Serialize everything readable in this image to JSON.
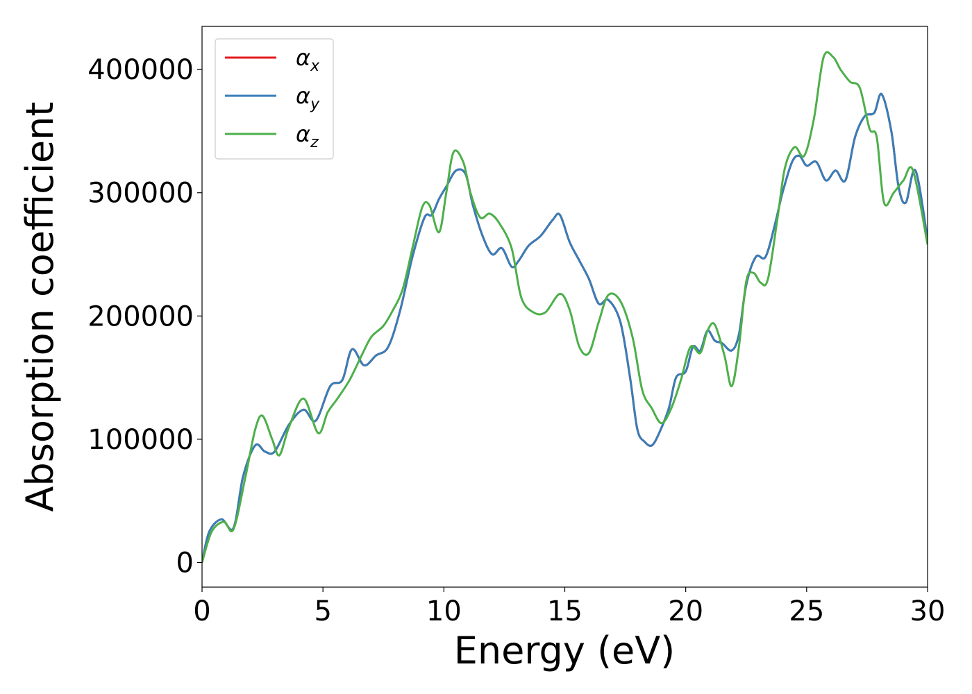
{
  "chart_data": {
    "type": "line",
    "xlabel": "Energy (eV)",
    "ylabel": "Absorption coefficient",
    "xlim": [
      0,
      30
    ],
    "ylim": [
      -20000,
      435000
    ],
    "xticks": [
      0,
      5,
      10,
      15,
      20,
      25,
      30
    ],
    "yticks": [
      0,
      100000,
      200000,
      300000,
      400000
    ],
    "grid": false,
    "legend_position": "top-left",
    "series": [
      {
        "name": "αx",
        "symbol": "α",
        "subscript": "x",
        "color": "#e41a1c",
        "x": [
          0,
          0.3,
          0.8,
          1.3,
          1.7,
          2.2,
          2.6,
          3.0,
          3.6,
          4.2,
          4.7,
          5.3,
          5.8,
          6.2,
          6.7,
          7.2,
          7.7,
          8.2,
          8.7,
          9.2,
          9.5,
          9.8,
          10.1,
          10.5,
          10.9,
          11.2,
          11.6,
          12.0,
          12.4,
          12.8,
          13.1,
          13.5,
          14.0,
          14.5,
          14.8,
          15.2,
          15.6,
          16.0,
          16.4,
          16.8,
          17.3,
          17.7,
          18.0,
          18.3,
          18.6,
          18.9,
          19.3,
          19.6,
          20.0,
          20.3,
          20.6,
          20.9,
          21.2,
          21.5,
          21.9,
          22.2,
          22.5,
          22.9,
          23.3,
          23.7,
          24.0,
          24.4,
          24.7,
          25.0,
          25.4,
          25.8,
          26.2,
          26.6,
          27.0,
          27.4,
          27.8,
          28.1,
          28.5,
          28.8,
          29.1,
          29.5,
          30.0
        ],
        "values": [
          0,
          25000,
          35000,
          28000,
          70000,
          95000,
          90000,
          90000,
          112000,
          124000,
          115000,
          143000,
          148000,
          173000,
          160000,
          168000,
          175000,
          205000,
          248000,
          280000,
          282000,
          295000,
          305000,
          318000,
          315000,
          290000,
          265000,
          250000,
          255000,
          240000,
          245000,
          257000,
          265000,
          278000,
          282000,
          260000,
          245000,
          230000,
          210000,
          213000,
          195000,
          150000,
          108000,
          98000,
          95000,
          105000,
          125000,
          150000,
          155000,
          175000,
          172000,
          188000,
          180000,
          178000,
          172000,
          185000,
          225000,
          248000,
          248000,
          275000,
          300000,
          325000,
          330000,
          322000,
          325000,
          310000,
          318000,
          310000,
          345000,
          362000,
          365000,
          380000,
          350000,
          305000,
          292000,
          318000,
          262000
        ]
      },
      {
        "name": "αy",
        "symbol": "α",
        "subscript": "y",
        "color": "#377eb8",
        "x": [
          0,
          0.3,
          0.8,
          1.3,
          1.7,
          2.2,
          2.6,
          3.0,
          3.6,
          4.2,
          4.7,
          5.3,
          5.8,
          6.2,
          6.7,
          7.2,
          7.7,
          8.2,
          8.7,
          9.2,
          9.5,
          9.8,
          10.1,
          10.5,
          10.9,
          11.2,
          11.6,
          12.0,
          12.4,
          12.8,
          13.1,
          13.5,
          14.0,
          14.5,
          14.8,
          15.2,
          15.6,
          16.0,
          16.4,
          16.8,
          17.3,
          17.7,
          18.0,
          18.3,
          18.6,
          18.9,
          19.3,
          19.6,
          20.0,
          20.3,
          20.6,
          20.9,
          21.2,
          21.5,
          21.9,
          22.2,
          22.5,
          22.9,
          23.3,
          23.7,
          24.0,
          24.4,
          24.7,
          25.0,
          25.4,
          25.8,
          26.2,
          26.6,
          27.0,
          27.4,
          27.8,
          28.1,
          28.5,
          28.8,
          29.1,
          29.5,
          30.0
        ],
        "values": [
          0,
          25000,
          35000,
          28000,
          70000,
          95000,
          90000,
          90000,
          112000,
          124000,
          115000,
          143000,
          148000,
          173000,
          160000,
          168000,
          175000,
          205000,
          248000,
          280000,
          282000,
          295000,
          305000,
          318000,
          315000,
          290000,
          265000,
          250000,
          255000,
          240000,
          245000,
          257000,
          265000,
          278000,
          282000,
          260000,
          245000,
          230000,
          210000,
          213000,
          195000,
          150000,
          108000,
          98000,
          95000,
          105000,
          125000,
          150000,
          155000,
          175000,
          172000,
          188000,
          180000,
          178000,
          172000,
          185000,
          225000,
          248000,
          248000,
          275000,
          300000,
          325000,
          330000,
          322000,
          325000,
          310000,
          318000,
          310000,
          345000,
          362000,
          365000,
          380000,
          350000,
          305000,
          292000,
          318000,
          262000
        ]
      },
      {
        "name": "αz",
        "symbol": "α",
        "subscript": "z",
        "color": "#4daf4a",
        "x": [
          0,
          0.4,
          0.9,
          1.3,
          1.8,
          2.2,
          2.5,
          2.9,
          3.2,
          3.6,
          4.2,
          4.8,
          5.2,
          5.6,
          6.1,
          6.6,
          7.0,
          7.5,
          7.9,
          8.3,
          8.7,
          9.1,
          9.4,
          9.8,
          10.1,
          10.4,
          10.8,
          11.1,
          11.5,
          11.9,
          12.3,
          12.8,
          13.2,
          13.7,
          14.2,
          14.8,
          15.2,
          15.6,
          16.0,
          16.4,
          16.8,
          17.3,
          17.8,
          18.2,
          18.6,
          19.0,
          19.4,
          19.8,
          20.2,
          20.6,
          20.9,
          21.2,
          21.6,
          21.9,
          22.2,
          22.5,
          22.8,
          23.1,
          23.4,
          23.8,
          24.1,
          24.5,
          24.9,
          25.3,
          25.7,
          26.1,
          26.4,
          26.8,
          27.2,
          27.6,
          27.9,
          28.2,
          28.6,
          29.0,
          29.4,
          30.0
        ],
        "values": [
          0,
          25000,
          33000,
          27000,
          70000,
          108000,
          119000,
          100000,
          87000,
          110000,
          133000,
          105000,
          122000,
          133000,
          148000,
          168000,
          183000,
          192000,
          205000,
          222000,
          255000,
          288000,
          290000,
          268000,
          300000,
          333000,
          325000,
          300000,
          280000,
          283000,
          275000,
          255000,
          215000,
          203000,
          203000,
          218000,
          205000,
          175000,
          170000,
          195000,
          217000,
          212000,
          183000,
          140000,
          125000,
          113000,
          125000,
          148000,
          175000,
          170000,
          188000,
          193000,
          168000,
          143000,
          175000,
          228000,
          235000,
          227000,
          230000,
          280000,
          320000,
          337000,
          330000,
          360000,
          410000,
          410000,
          400000,
          390000,
          385000,
          352000,
          345000,
          292000,
          300000,
          310000,
          318000,
          258000
        ]
      }
    ]
  }
}
